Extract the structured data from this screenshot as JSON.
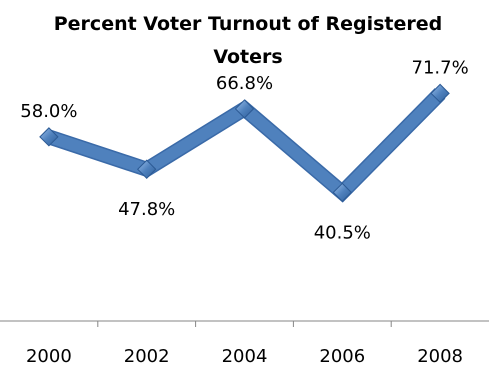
{
  "chart_data": {
    "type": "line",
    "title_lines": [
      "Percent Voter Turnout of Registered",
      "Voters"
    ],
    "categories": [
      "2000",
      "2002",
      "2004",
      "2006",
      "2008"
    ],
    "series": [
      {
        "values": [
          58.0,
          47.8,
          66.8,
          40.5,
          71.7
        ],
        "data_labels": [
          "58.0%",
          "47.8%",
          "66.8%",
          "40.5%",
          "71.7%"
        ]
      }
    ],
    "xlabel": "",
    "ylabel": "",
    "ylim": [
      0,
      80
    ],
    "grid": false,
    "legend": "none",
    "colors": {
      "line": "#4F81BD",
      "line_edge": "#3A6AA8",
      "marker": "#4A7EC4",
      "axis": "#868686"
    }
  }
}
